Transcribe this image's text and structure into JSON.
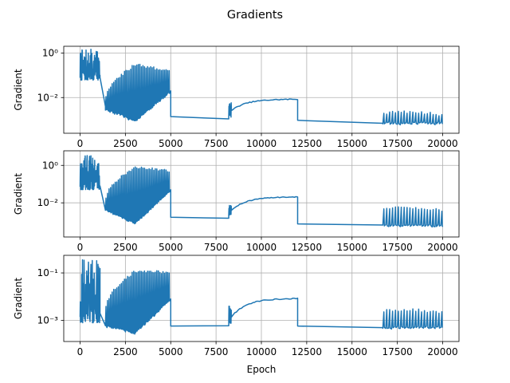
{
  "figure": {
    "title": "Gradients",
    "line_color": "#1f77b4",
    "grid_color": "#b0b0b0"
  },
  "chart_data": [
    {
      "type": "line",
      "title": "",
      "xlabel": "",
      "ylabel": "Gradient",
      "yscale": "log",
      "grid": true,
      "xlim": [
        -900,
        20900
      ],
      "ylim": [
        0.00025,
        2.0
      ],
      "xticks": [
        0,
        2500,
        5000,
        7500,
        10000,
        12500,
        15000,
        17500,
        20000
      ],
      "xtick_labels": [
        "0",
        "2500",
        "5000",
        "7500",
        "10000",
        "12500",
        "15000",
        "17500",
        "20000"
      ],
      "yticks": [
        0.01,
        1
      ],
      "ytick_labels": [
        "10⁻²",
        "10⁰"
      ],
      "series": [
        {
          "segments": [
            {
              "kind": "noisy",
              "x0": 0,
              "x1": 1100,
              "low": 0.06,
              "high": 1.5
            },
            {
              "kind": "decay",
              "x0": 1100,
              "x1": 1400,
              "from": 0.08,
              "to": 0.004
            },
            {
              "kind": "osc",
              "x0": 1400,
              "x1": 5000,
              "lowStart": 0.003,
              "lowMid": 0.0009,
              "lowEnd": 0.02,
              "highStart": 0.01,
              "highMid": 0.3,
              "highEnd": 0.15,
              "period": 85
            },
            {
              "kind": "smooth",
              "x0": 5000,
              "x1": 8200,
              "from": 0.0014,
              "to": 0.0011
            },
            {
              "kind": "rise",
              "x0": 8200,
              "x1": 12000,
              "from": 0.0013,
              "to": 0.0085,
              "spikes": [
                0.002,
                0.006
              ]
            },
            {
              "kind": "smooth",
              "x0": 12000,
              "x1": 16700,
              "from": 0.00095,
              "to": 0.0007
            },
            {
              "kind": "osc",
              "x0": 16700,
              "x1": 20000,
              "lowStart": 0.0007,
              "lowMid": 0.0007,
              "lowEnd": 0.0007,
              "highStart": 0.002,
              "highMid": 0.0023,
              "highEnd": 0.0017,
              "period": 160
            }
          ]
        }
      ]
    },
    {
      "type": "line",
      "title": "",
      "xlabel": "",
      "ylabel": "Gradient",
      "yscale": "log",
      "grid": true,
      "xlim": [
        -900,
        20900
      ],
      "ylim": [
        0.00015,
        6.0
      ],
      "xticks": [
        0,
        2500,
        5000,
        7500,
        10000,
        12500,
        15000,
        17500,
        20000
      ],
      "xtick_labels": [
        "0",
        "2500",
        "5000",
        "7500",
        "10000",
        "12500",
        "15000",
        "17500",
        "20000"
      ],
      "yticks": [
        0.01,
        1
      ],
      "ytick_labels": [
        "10⁻²",
        "10⁰"
      ],
      "series": [
        {
          "segments": [
            {
              "kind": "noisy",
              "x0": 0,
              "x1": 1100,
              "low": 0.05,
              "high": 4.0
            },
            {
              "kind": "decay",
              "x0": 1100,
              "x1": 1400,
              "from": 0.08,
              "to": 0.004
            },
            {
              "kind": "osc",
              "x0": 1400,
              "x1": 5000,
              "lowStart": 0.004,
              "lowMid": 0.0008,
              "lowEnd": 0.05,
              "highStart": 0.02,
              "highMid": 0.8,
              "highEnd": 0.5,
              "period": 85
            },
            {
              "kind": "smooth",
              "x0": 5000,
              "x1": 8200,
              "from": 0.0017,
              "to": 0.0015
            },
            {
              "kind": "rise",
              "x0": 8200,
              "x1": 12000,
              "from": 0.002,
              "to": 0.021,
              "spikes": [
                0.003,
                0.008
              ]
            },
            {
              "kind": "smooth",
              "x0": 12000,
              "x1": 16700,
              "from": 0.00075,
              "to": 0.00065
            },
            {
              "kind": "osc",
              "x0": 16700,
              "x1": 20000,
              "lowStart": 0.0006,
              "lowMid": 0.0006,
              "lowEnd": 0.0006,
              "highStart": 0.005,
              "highMid": 0.0055,
              "highEnd": 0.004,
              "period": 160
            }
          ]
        }
      ]
    },
    {
      "type": "line",
      "title": "",
      "xlabel": "Epoch",
      "ylabel": "Gradient",
      "yscale": "log",
      "grid": true,
      "xlim": [
        -900,
        20900
      ],
      "ylim": [
        0.00013,
        0.55
      ],
      "xticks": [
        0,
        2500,
        5000,
        7500,
        10000,
        12500,
        15000,
        17500,
        20000
      ],
      "xtick_labels": [
        "0",
        "2500",
        "5000",
        "7500",
        "10000",
        "12500",
        "15000",
        "17500",
        "20000"
      ],
      "yticks": [
        0.001,
        0.1
      ],
      "ytick_labels": [
        "10⁻³",
        "10⁻¹"
      ],
      "series": [
        {
          "segments": [
            {
              "kind": "noisy",
              "x0": 0,
              "x1": 1100,
              "low": 0.0008,
              "high": 0.4
            },
            {
              "kind": "decay",
              "x0": 1100,
              "x1": 1400,
              "from": 0.002,
              "to": 0.0006
            },
            {
              "kind": "osc",
              "x0": 1400,
              "x1": 5000,
              "lowStart": 0.0006,
              "lowMid": 0.0003,
              "lowEnd": 0.008,
              "highStart": 0.004,
              "highMid": 0.12,
              "highEnd": 0.1,
              "period": 85
            },
            {
              "kind": "smooth",
              "x0": 5000,
              "x1": 8200,
              "from": 0.00058,
              "to": 0.0006
            },
            {
              "kind": "rise",
              "x0": 8200,
              "x1": 12000,
              "from": 0.0007,
              "to": 0.0085,
              "spikes": [
                0.001,
                0.004
              ]
            },
            {
              "kind": "smooth",
              "x0": 12000,
              "x1": 16700,
              "from": 0.00058,
              "to": 0.0005
            },
            {
              "kind": "osc",
              "x0": 16700,
              "x1": 20000,
              "lowStart": 0.0005,
              "lowMid": 0.0005,
              "lowEnd": 0.0005,
              "highStart": 0.0025,
              "highMid": 0.0028,
              "highEnd": 0.0022,
              "period": 160
            }
          ]
        }
      ]
    }
  ]
}
